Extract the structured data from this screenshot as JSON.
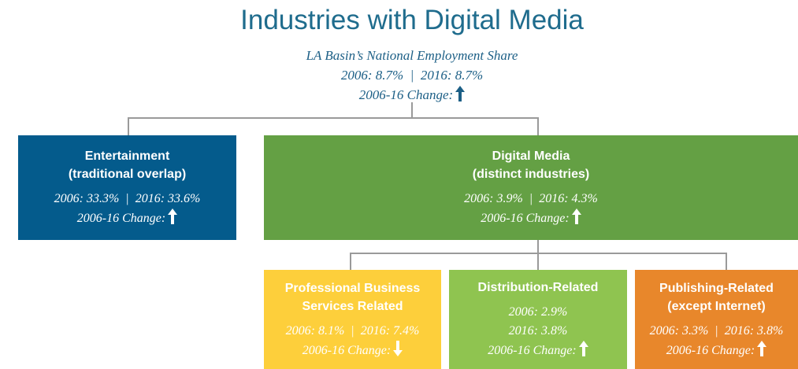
{
  "title": "Industries with Digital Media",
  "root": {
    "lines": [
      "LA Basin’s National Employment Share",
      "2006: 8.7%  |  2016: 8.7%"
    ],
    "change_label": "2006-16 Change:",
    "change": "up"
  },
  "nodes": [
    {
      "heading": [
        "Entertainment",
        "(traditional overlap)"
      ],
      "lines": [
        "2006: 33.3%  |  2016: 33.6%"
      ],
      "change_label": "2006-16 Change:",
      "change": "up",
      "color": "#045b8c"
    },
    {
      "heading": [
        "Digital Media",
        "(distinct industries)"
      ],
      "lines": [
        "2006: 3.9%  |  2016: 4.3%"
      ],
      "change_label": "2006-16 Change:",
      "change": "up",
      "color": "#64a044"
    },
    {
      "heading": [
        "Professional Business",
        "Services Related"
      ],
      "lines": [
        "2006: 8.1%  |  2016: 7.4%"
      ],
      "change_label": "2006-16 Change:",
      "change": "down",
      "color": "#fdcf3b"
    },
    {
      "heading": [
        "Distribution-Related"
      ],
      "lines": [
        "2006: 2.9%",
        "2016: 3.8%"
      ],
      "change_label": "2006-16 Change:",
      "change": "up",
      "color": "#8fc450"
    },
    {
      "heading": [
        "Publishing-Related",
        "(except Internet)"
      ],
      "lines": [
        "2006: 3.3%  |  2016: 3.8%"
      ],
      "change_label": "2006-16 Change:",
      "change": "up",
      "color": "#e8872b"
    }
  ]
}
